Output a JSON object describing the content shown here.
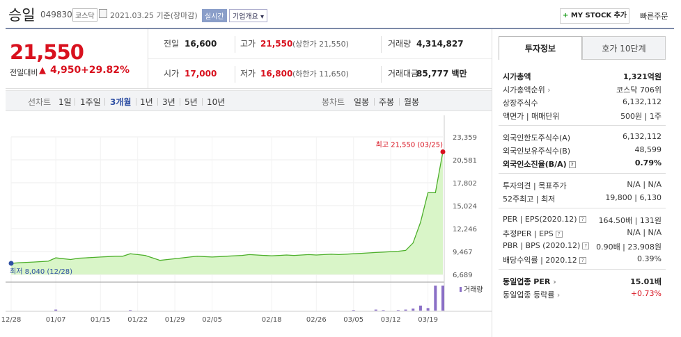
{
  "header": {
    "name": "승일",
    "code": "049830",
    "market": "코스닥",
    "date": "2021.03.25",
    "date_suffix": "기준(장마감)",
    "session": "실시간",
    "overview": "기업개요",
    "mystock": "MY STOCK 추가",
    "quick_order": "빠른주문"
  },
  "price": {
    "current": "21,550",
    "label": "전일대비",
    "diff": "4,950",
    "rate": "+29.82%"
  },
  "stats": {
    "prev_label": "전일",
    "prev": "16,600",
    "high_label": "고가",
    "high": "21,550",
    "high_sub": "(상한가 21,550)",
    "volume_label": "거래량",
    "volume": "4,314,827",
    "open_label": "시가",
    "open": "17,000",
    "low_label": "저가",
    "low": "16,800",
    "low_sub": "(하한가 11,650)",
    "amount_label": "거래대금",
    "amount": "85,777 백만"
  },
  "tabbar": {
    "line_label": "선차트",
    "periods": [
      "1일",
      "1주일",
      "3개월",
      "1년",
      "3년",
      "5년",
      "10년"
    ],
    "active_period": "3개월",
    "candle_label": "봉차트",
    "candles": [
      "일봉",
      "주봉",
      "월봉"
    ]
  },
  "chart_data": {
    "type": "line",
    "x_ticks": [
      "12/28",
      "01/07",
      "01/15",
      "01/22",
      "01/29",
      "02/05",
      "02/18",
      "02/26",
      "03/05",
      "03/12",
      "03/19"
    ],
    "y_ticks": [
      "23,359",
      "20,581",
      "17,802",
      "15,024",
      "12,246",
      "9,467",
      "6,689"
    ],
    "ylim": [
      6689,
      23359
    ],
    "high_label": "최고 21,550 (03/25)",
    "low_label": "최저 8,040 (12/28)",
    "volume_label": "거래량",
    "series": [
      {
        "values": [
          8040,
          8100,
          8150,
          8200,
          8250,
          8300,
          8700,
          8600,
          8500,
          8650,
          8700,
          8750,
          8800,
          8850,
          8900,
          8900,
          9200,
          9100,
          9000,
          8700,
          8400,
          8500,
          8600,
          8700,
          8800,
          8900,
          8850,
          8800,
          8850,
          8900,
          8950,
          9000,
          9100,
          9050,
          9000,
          8950,
          9000,
          9050,
          9000,
          9050,
          9100,
          9050,
          9100,
          9150,
          9100,
          9150,
          9200,
          9250,
          9300,
          9350,
          9400,
          9450,
          9500,
          9600,
          10500,
          13000,
          16600,
          16600,
          21550
        ]
      }
    ],
    "volume": [
      0,
      0,
      0,
      0,
      0,
      0,
      2,
      0,
      0,
      0,
      0,
      0,
      0,
      0,
      0,
      0,
      1,
      0,
      0,
      0,
      0,
      0,
      0,
      0,
      0,
      0,
      0,
      0,
      0,
      0,
      0,
      0,
      0,
      0,
      0,
      0,
      0,
      0,
      0,
      0,
      0,
      0,
      0,
      0,
      0,
      0,
      1,
      0,
      0,
      2,
      1,
      0,
      1,
      2,
      4,
      10,
      5,
      50,
      50
    ]
  },
  "panel": {
    "tab_active": "투자정보",
    "tab_other": "호가 10단계",
    "rows1": [
      {
        "k": "시가총액",
        "v": "1,321억원",
        "bold": true
      },
      {
        "k": "시가총액순위",
        "v": "코스닥 706위",
        "arrow": true
      },
      {
        "k": "상장주식수",
        "v": "6,132,112"
      },
      {
        "k": "액면가 | 매매단위",
        "v": "500원 | 1주"
      }
    ],
    "rows2": [
      {
        "k": "외국인한도주식수(A)",
        "v": "6,132,112"
      },
      {
        "k": "외국인보유주식수(B)",
        "v": "48,599"
      },
      {
        "k": "외국인소진율(B/A)",
        "v": "0.79%",
        "bold": true,
        "q": true
      }
    ],
    "rows3": [
      {
        "k": "투자의견 | 목표주가",
        "v": "N/A | N/A"
      },
      {
        "k": "52주최고 | 최저",
        "v": "19,800 | 6,130"
      }
    ],
    "rows4": [
      {
        "k": "PER | EPS(2020.12)",
        "v": "164.50배 | 131원",
        "q": true
      },
      {
        "k": "추정PER | EPS",
        "v": "N/A | N/A",
        "q": true
      },
      {
        "k": "PBR | BPS (2020.12)",
        "v": "0.90배 | 23,908원",
        "q": true
      },
      {
        "k": "배당수익률 | 2020.12",
        "v": "0.39%",
        "q": true
      }
    ],
    "rows5": [
      {
        "k": "동일업종 PER",
        "v": "15.01배",
        "bold": true,
        "arrow": true
      },
      {
        "k": "동일업종 등락률",
        "v": "+0.73%",
        "red": true,
        "arrow": true
      }
    ]
  },
  "colors": {
    "up": "#d8111e",
    "line": "#4caf2a",
    "fill": "#d9f5c8",
    "accent": "#2e4fa3",
    "volume": "#8a6fc6"
  }
}
